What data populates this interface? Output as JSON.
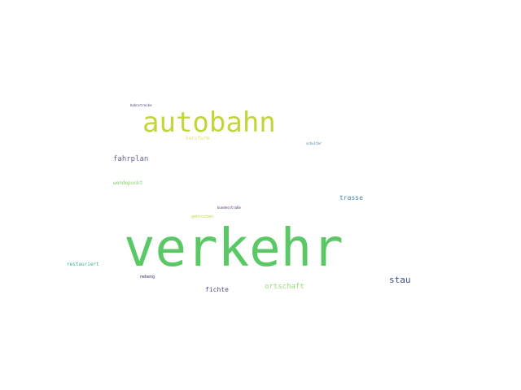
{
  "words": {
    "verkehr": {
      "text": "verkehr",
      "color": "#5ac864"
    },
    "autobahn": {
      "text": "autobahn",
      "color": "#c2d63a"
    },
    "stau": {
      "text": "stau",
      "color": "#3b4a7a"
    },
    "fahrplan": {
      "text": "fahrplan",
      "color": "#5d6a8e"
    },
    "trasse": {
      "text": "trasse",
      "color": "#4b89a8"
    },
    "ortschaft": {
      "text": "ortschaft",
      "color": "#9bd87a"
    },
    "fichte": {
      "text": "fichte",
      "color": "#5a4e8a"
    },
    "restauriert": {
      "text": "restauriert",
      "color": "#3fae9a"
    },
    "wendepunkt": {
      "text": "wendepunkt",
      "color": "#7fd06a"
    },
    "kurzform": {
      "text": "kurzform",
      "color": "#e0e06a"
    },
    "gebrochen": {
      "text": "gebrochen",
      "color": "#c8d838"
    },
    "bundesstrasse": {
      "text": "bundesstraße",
      "color": "#4a1a6a"
    },
    "schulter": {
      "text": "schulter",
      "color": "#3a7aa0"
    },
    "bahnstrecke": {
      "text": "bahnstrecke",
      "color": "#4a3a7a"
    },
    "nebeng": {
      "text": "nebeng",
      "color": "#3a2a6a"
    }
  }
}
